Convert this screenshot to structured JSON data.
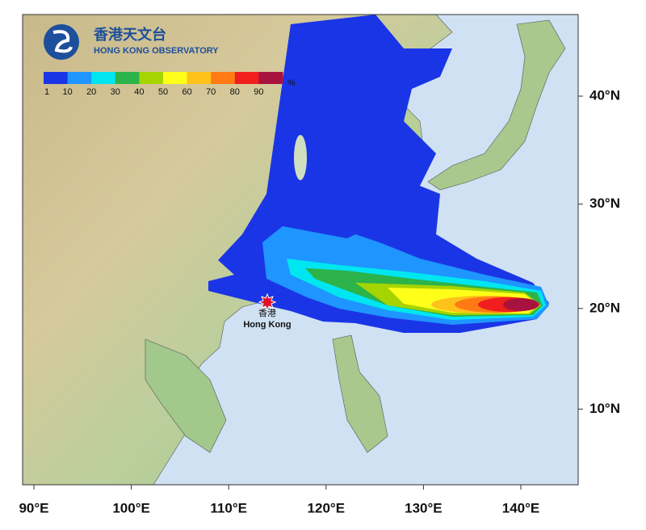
{
  "logo": {
    "name_zh": "香港天文台",
    "name_en": "HONG KONG OBSERVATORY"
  },
  "legend": {
    "colors": [
      "#1a35e6",
      "#1e95ff",
      "#00e6f0",
      "#2cb34a",
      "#a6d400",
      "#ffff1a",
      "#ffc21a",
      "#ff7a14",
      "#f01e1e",
      "#a8123f"
    ],
    "labels": [
      "1",
      "10",
      "20",
      "30",
      "40",
      "50",
      "60",
      "70",
      "80",
      "90"
    ],
    "unit": "%"
  },
  "axes": {
    "longitude_labels": [
      "90°E",
      "100°E",
      "110°E",
      "120°E",
      "130°E",
      "140°E"
    ],
    "latitude_labels": [
      "40°N",
      "30°N",
      "20°N",
      "10°N"
    ]
  },
  "marker": {
    "label_zh": "香港",
    "label_en": "Hong Kong"
  }
}
